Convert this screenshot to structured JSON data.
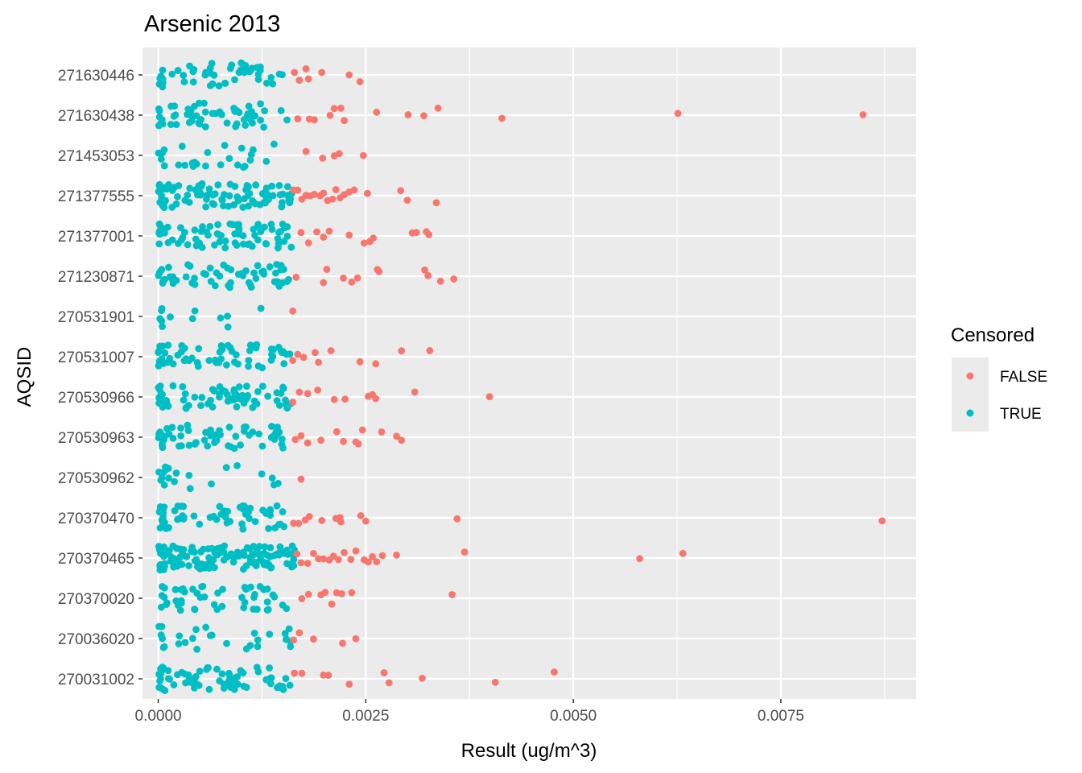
{
  "chart_data": {
    "type": "scatter",
    "title": "Arsenic 2013",
    "xlabel": "Result (ug/m^3)",
    "ylabel": "AQSID",
    "xlim": [
      -0.00019,
      0.00913
    ],
    "x_ticks": [
      0.0,
      0.0025,
      0.005,
      0.0075
    ],
    "x_tick_labels": [
      "0.0000",
      "0.0025",
      "0.0050",
      "0.0075"
    ],
    "grid": true,
    "legend": {
      "title": "Censored",
      "position": "right",
      "entries": [
        {
          "label": "FALSE",
          "color": "#F8766D"
        },
        {
          "label": "TRUE",
          "color": "#00BFC4"
        }
      ]
    },
    "categories": [
      "271630446",
      "271630438",
      "271453053",
      "271377555",
      "271377001",
      "271230871",
      "270531901",
      "270531007",
      "270530966",
      "270530963",
      "270530962",
      "270370470",
      "270370465",
      "270370020",
      "270036020",
      "270031002"
    ],
    "series": [
      {
        "name": "FALSE",
        "color": "#F8766D",
        "points": [
          {
            "cat": "271630446",
            "x": [
              0.00164,
              0.0017,
              0.00178,
              0.00181,
              0.00197,
              0.0023,
              0.00243
            ]
          },
          {
            "cat": "271630438",
            "x": [
              0.00168,
              0.00182,
              0.00188,
              0.00207,
              0.00212,
              0.0022,
              0.00224,
              0.00263,
              0.00301,
              0.0032,
              0.00337,
              0.00414,
              0.00626,
              0.00849
            ]
          },
          {
            "cat": "271453053",
            "x": [
              0.00178,
              0.00198,
              0.00212,
              0.00218,
              0.00247
            ]
          },
          {
            "cat": "271377555",
            "x": [
              0.00163,
              0.00168,
              0.00173,
              0.00178,
              0.00183,
              0.00188,
              0.00195,
              0.00199,
              0.00204,
              0.0021,
              0.00214,
              0.00219,
              0.00224,
              0.0023,
              0.00236,
              0.00252,
              0.00292,
              0.003,
              0.00335
            ]
          },
          {
            "cat": "271377001",
            "x": [
              0.00172,
              0.00181,
              0.00191,
              0.00199,
              0.00206,
              0.0023,
              0.00248,
              0.00255,
              0.00259,
              0.00306,
              0.00311,
              0.00323,
              0.00326
            ]
          },
          {
            "cat": "271230871",
            "x": [
              0.00166,
              0.00199,
              0.00203,
              0.00223,
              0.00233,
              0.0024,
              0.00264,
              0.00266,
              0.00321,
              0.00325,
              0.0034,
              0.00356
            ]
          },
          {
            "cat": "270531901",
            "x": [
              0.00162
            ]
          },
          {
            "cat": "270531007",
            "x": [
              0.00162,
              0.00168,
              0.00175,
              0.00189,
              0.00193,
              0.00208,
              0.00243,
              0.00262,
              0.00293,
              0.00327
            ]
          },
          {
            "cat": "270530966",
            "x": [
              0.00162,
              0.0017,
              0.0018,
              0.00192,
              0.00212,
              0.00225,
              0.00253,
              0.00258,
              0.00262,
              0.00309,
              0.00399
            ]
          },
          {
            "cat": "270530963",
            "x": [
              0.00165,
              0.00172,
              0.0018,
              0.00196,
              0.00215,
              0.00223,
              0.00238,
              0.00241,
              0.00246,
              0.00269,
              0.00287,
              0.00293
            ]
          },
          {
            "cat": "270530962",
            "x": [
              0.00172
            ]
          },
          {
            "cat": "270370470",
            "x": [
              0.00163,
              0.00169,
              0.00177,
              0.00182,
              0.00197,
              0.00214,
              0.00219,
              0.0022,
              0.00244,
              0.0025,
              0.0036,
              0.00872
            ]
          },
          {
            "cat": "270370465",
            "x": [
              0.00167,
              0.00172,
              0.0018,
              0.00187,
              0.00193,
              0.00199,
              0.00206,
              0.00211,
              0.00217,
              0.00224,
              0.00232,
              0.00238,
              0.00248,
              0.00253,
              0.00258,
              0.00263,
              0.0027,
              0.00287,
              0.00369,
              0.0058,
              0.00632
            ]
          },
          {
            "cat": "270370020",
            "x": [
              0.00173,
              0.00181,
              0.00196,
              0.00201,
              0.00209,
              0.00215,
              0.00221,
              0.00233,
              0.00354
            ]
          },
          {
            "cat": "270036020",
            "x": [
              0.00163,
              0.0017,
              0.00187,
              0.00222,
              0.00238
            ]
          },
          {
            "cat": "270031002",
            "x": [
              0.00164,
              0.00173,
              0.00199,
              0.00205,
              0.0023,
              0.00272,
              0.00278,
              0.00318,
              0.00406,
              0.00477
            ]
          }
        ]
      },
      {
        "name": "TRUE",
        "color": "#00BFC4",
        "points": [
          {
            "cat": "271630446",
            "n": 48,
            "xmax": 0.0015
          },
          {
            "cat": "271630438",
            "n": 55,
            "xmax": 0.0016
          },
          {
            "cat": "271453053",
            "n": 26,
            "xmax": 0.00143
          },
          {
            "cat": "271377555",
            "n": 95,
            "xmax": 0.00162
          },
          {
            "cat": "271377001",
            "n": 75,
            "xmax": 0.00162
          },
          {
            "cat": "271230871",
            "n": 60,
            "xmax": 0.0016
          },
          {
            "cat": "270531901",
            "n": 12,
            "xmax": 0.0014
          },
          {
            "cat": "270531007",
            "n": 62,
            "xmax": 0.00162
          },
          {
            "cat": "270530966",
            "n": 70,
            "xmax": 0.0016
          },
          {
            "cat": "270530963",
            "n": 60,
            "xmax": 0.00155
          },
          {
            "cat": "270530962",
            "n": 20,
            "xmax": 0.00152
          },
          {
            "cat": "270370470",
            "n": 58,
            "xmax": 0.00162
          },
          {
            "cat": "270370465",
            "n": 140,
            "xmax": 0.00164
          },
          {
            "cat": "270370020",
            "n": 50,
            "xmax": 0.0016
          },
          {
            "cat": "270036020",
            "n": 28,
            "xmax": 0.00164
          },
          {
            "cat": "270031002",
            "n": 72,
            "xmax": 0.00162
          }
        ]
      }
    ]
  }
}
